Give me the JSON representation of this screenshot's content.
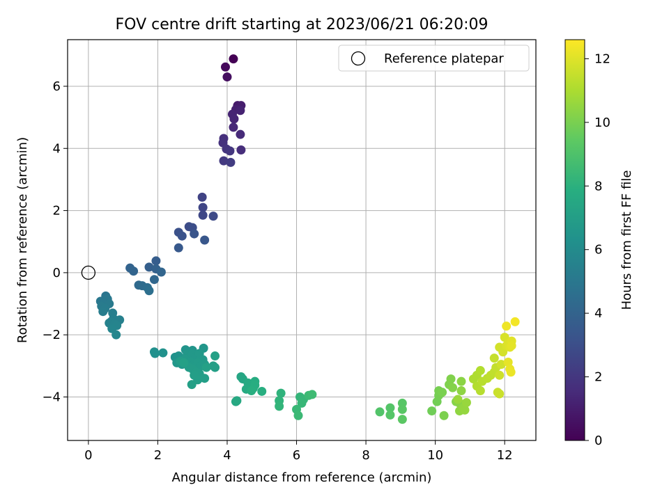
{
  "chart_data": {
    "type": "scatter",
    "title": "FOV centre drift starting at 2023/06/21 06:20:09",
    "xlabel": "Angular distance from reference (arcmin)",
    "ylabel": "Rotation from reference (arcmin)",
    "xlim": [
      -0.6,
      12.9
    ],
    "ylim": [
      -5.4,
      7.5
    ],
    "xticks": [
      0,
      2,
      4,
      6,
      8,
      10,
      12
    ],
    "yticks": [
      -4,
      -2,
      0,
      2,
      4,
      6
    ],
    "xtick_labels": [
      "0",
      "2",
      "4",
      "6",
      "8",
      "10",
      "12"
    ],
    "ytick_labels": [
      "−4",
      "−2",
      "0",
      "2",
      "4",
      "6"
    ],
    "grid": true,
    "legend": {
      "position": "top-right",
      "entries": [
        "Reference platepar"
      ]
    },
    "reference_point": {
      "x": 0,
      "y": 0
    },
    "colorbar": {
      "label": "Hours from first FF file",
      "colormap": "viridis",
      "range": [
        0,
        12.6
      ],
      "ticks": [
        0,
        2,
        4,
        6,
        8,
        10,
        12
      ],
      "tick_labels": [
        "0",
        "2",
        "4",
        "6",
        "8",
        "10",
        "12"
      ]
    },
    "points": [
      [
        4.18,
        6.88,
        0.0
      ],
      [
        3.95,
        6.62,
        0.3
      ],
      [
        4.0,
        6.3,
        0.5
      ],
      [
        4.3,
        5.38,
        0.9
      ],
      [
        4.4,
        5.38,
        1.0
      ],
      [
        4.25,
        5.25,
        1.1
      ],
      [
        4.38,
        5.22,
        1.2
      ],
      [
        4.15,
        5.1,
        1.25
      ],
      [
        4.2,
        4.95,
        1.3
      ],
      [
        4.18,
        4.68,
        1.4
      ],
      [
        4.38,
        4.45,
        1.5
      ],
      [
        4.4,
        3.95,
        1.6
      ],
      [
        3.9,
        4.32,
        1.7
      ],
      [
        3.88,
        4.18,
        1.8
      ],
      [
        3.98,
        3.98,
        1.9
      ],
      [
        4.08,
        3.92,
        2.0
      ],
      [
        3.9,
        3.6,
        2.1
      ],
      [
        4.1,
        3.55,
        2.2
      ],
      [
        3.28,
        2.43,
        2.5
      ],
      [
        3.3,
        2.1,
        2.6
      ],
      [
        3.3,
        1.85,
        2.7
      ],
      [
        3.6,
        1.82,
        2.8
      ],
      [
        2.9,
        1.48,
        2.9
      ],
      [
        3.0,
        1.45,
        3.0
      ],
      [
        2.6,
        1.3,
        3.1
      ],
      [
        2.7,
        1.18,
        3.2
      ],
      [
        3.05,
        1.25,
        3.3
      ],
      [
        3.35,
        1.05,
        3.4
      ],
      [
        2.6,
        0.8,
        3.5
      ],
      [
        1.95,
        0.38,
        3.7
      ],
      [
        1.75,
        0.18,
        3.8
      ],
      [
        1.95,
        0.12,
        3.9
      ],
      [
        1.2,
        0.15,
        4.0
      ],
      [
        1.3,
        0.05,
        4.05
      ],
      [
        2.1,
        0.02,
        4.1
      ],
      [
        1.9,
        -0.22,
        4.2
      ],
      [
        1.45,
        -0.4,
        4.3
      ],
      [
        1.55,
        -0.42,
        4.4
      ],
      [
        1.7,
        -0.48,
        4.5
      ],
      [
        1.75,
        -0.58,
        4.6
      ],
      [
        0.5,
        -0.75,
        4.9
      ],
      [
        0.35,
        -0.92,
        5.0
      ],
      [
        0.55,
        -0.85,
        5.05
      ],
      [
        0.45,
        -0.98,
        5.1
      ],
      [
        0.6,
        -1.0,
        5.15
      ],
      [
        0.38,
        -1.08,
        5.2
      ],
      [
        0.48,
        -1.15,
        5.25
      ],
      [
        0.42,
        -1.25,
        5.3
      ],
      [
        0.7,
        -1.3,
        5.35
      ],
      [
        0.72,
        -1.48,
        5.4
      ],
      [
        0.9,
        -1.52,
        5.45
      ],
      [
        0.65,
        -1.58,
        5.5
      ],
      [
        0.6,
        -1.62,
        5.55
      ],
      [
        0.75,
        -1.65,
        5.6
      ],
      [
        0.82,
        -1.7,
        5.65
      ],
      [
        0.68,
        -1.8,
        5.7
      ],
      [
        0.8,
        -2.0,
        5.75
      ],
      [
        1.9,
        -2.55,
        6.2
      ],
      [
        1.92,
        -2.6,
        6.25
      ],
      [
        2.15,
        -2.58,
        6.3
      ],
      [
        2.5,
        -2.72,
        6.35
      ],
      [
        2.6,
        -2.68,
        6.4
      ],
      [
        2.8,
        -2.48,
        6.45
      ],
      [
        3.0,
        -2.5,
        6.5
      ],
      [
        3.32,
        -2.43,
        6.55
      ],
      [
        2.55,
        -2.9,
        6.6
      ],
      [
        2.7,
        -2.95,
        6.62
      ],
      [
        2.85,
        -2.62,
        6.64
      ],
      [
        2.9,
        -2.75,
        6.66
      ],
      [
        3.0,
        -2.62,
        6.68
      ],
      [
        3.1,
        -2.7,
        6.7
      ],
      [
        3.2,
        -2.6,
        6.72
      ],
      [
        3.3,
        -2.8,
        6.74
      ],
      [
        2.78,
        -2.78,
        6.76
      ],
      [
        2.95,
        -2.88,
        6.78
      ],
      [
        3.05,
        -2.95,
        6.8
      ],
      [
        3.15,
        -2.9,
        6.82
      ],
      [
        3.25,
        -3.0,
        6.84
      ],
      [
        3.35,
        -2.95,
        6.86
      ],
      [
        2.65,
        -2.85,
        6.88
      ],
      [
        2.9,
        -3.05,
        6.9
      ],
      [
        3.0,
        -3.1,
        6.92
      ],
      [
        3.1,
        -3.2,
        6.94
      ],
      [
        3.2,
        -3.25,
        6.96
      ],
      [
        3.05,
        -3.3,
        6.98
      ],
      [
        3.15,
        -3.45,
        7.0
      ],
      [
        3.35,
        -3.4,
        7.02
      ],
      [
        2.98,
        -3.6,
        7.04
      ],
      [
        3.6,
        -3.0,
        7.06
      ],
      [
        3.65,
        -3.05,
        7.08
      ],
      [
        3.65,
        -2.68,
        7.1
      ],
      [
        2.75,
        -2.9,
        7.12
      ],
      [
        3.4,
        -3.05,
        7.14
      ],
      [
        4.4,
        -3.35,
        7.4
      ],
      [
        4.45,
        -3.42,
        7.45
      ],
      [
        4.25,
        -4.15,
        7.5
      ],
      [
        4.28,
        -4.12,
        7.55
      ],
      [
        4.6,
        -3.55,
        7.6
      ],
      [
        4.55,
        -3.75,
        7.65
      ],
      [
        4.75,
        -3.72,
        7.7
      ],
      [
        4.8,
        -3.5,
        7.75
      ],
      [
        4.8,
        -3.62,
        7.8
      ],
      [
        5.0,
        -3.82,
        7.85
      ],
      [
        4.7,
        -3.8,
        7.9
      ],
      [
        5.55,
        -3.88,
        8.1
      ],
      [
        5.5,
        -4.12,
        8.15
      ],
      [
        5.5,
        -4.3,
        8.2
      ],
      [
        6.1,
        -4.0,
        8.25
      ],
      [
        6.2,
        -4.08,
        8.3
      ],
      [
        6.15,
        -4.2,
        8.35
      ],
      [
        6.0,
        -4.4,
        8.4
      ],
      [
        6.05,
        -4.6,
        8.45
      ],
      [
        6.35,
        -3.95,
        8.5
      ],
      [
        6.45,
        -3.92,
        8.55
      ],
      [
        8.4,
        -4.48,
        9.1
      ],
      [
        8.7,
        -4.35,
        9.15
      ],
      [
        8.7,
        -4.58,
        9.2
      ],
      [
        9.05,
        -4.2,
        9.25
      ],
      [
        9.05,
        -4.4,
        9.3
      ],
      [
        9.05,
        -4.72,
        9.35
      ],
      [
        9.9,
        -4.45,
        9.8
      ],
      [
        10.05,
        -4.15,
        9.85
      ],
      [
        10.1,
        -3.95,
        9.9
      ],
      [
        10.1,
        -3.8,
        9.95
      ],
      [
        10.2,
        -3.85,
        10.0
      ],
      [
        10.25,
        -4.6,
        10.05
      ],
      [
        10.4,
        -3.6,
        10.1
      ],
      [
        10.45,
        -3.42,
        10.15
      ],
      [
        10.5,
        -3.7,
        10.2
      ],
      [
        10.6,
        -4.15,
        10.25
      ],
      [
        10.7,
        -4.2,
        10.3
      ],
      [
        10.75,
        -3.5,
        10.35
      ],
      [
        10.75,
        -3.8,
        10.4
      ],
      [
        10.7,
        -4.45,
        10.45
      ],
      [
        10.8,
        -4.35,
        10.5
      ],
      [
        10.85,
        -4.42,
        10.55
      ],
      [
        10.9,
        -4.18,
        10.6
      ],
      [
        10.65,
        -4.08,
        10.65
      ],
      [
        11.1,
        -3.42,
        11.0
      ],
      [
        11.2,
        -3.3,
        11.05
      ],
      [
        11.3,
        -3.15,
        11.1
      ],
      [
        11.2,
        -3.65,
        11.15
      ],
      [
        11.3,
        -3.8,
        11.2
      ],
      [
        11.35,
        -3.5,
        11.25
      ],
      [
        11.5,
        -3.4,
        11.3
      ],
      [
        11.6,
        -3.3,
        11.35
      ],
      [
        11.7,
        -3.2,
        11.4
      ],
      [
        11.75,
        -3.05,
        11.45
      ],
      [
        11.7,
        -2.75,
        11.5
      ],
      [
        11.8,
        -3.85,
        11.55
      ],
      [
        11.85,
        -3.9,
        11.6
      ],
      [
        11.85,
        -3.3,
        11.65
      ],
      [
        11.9,
        -2.95,
        11.7
      ],
      [
        11.85,
        -2.4,
        11.75
      ],
      [
        11.95,
        -2.55,
        11.8
      ],
      [
        12.0,
        -2.08,
        11.85
      ],
      [
        12.05,
        -2.35,
        11.9
      ],
      [
        12.1,
        -2.28,
        11.95
      ],
      [
        12.15,
        -2.4,
        12.0
      ],
      [
        12.2,
        -2.2,
        12.05
      ],
      [
        12.2,
        -2.35,
        12.1
      ],
      [
        12.1,
        -2.88,
        12.15
      ],
      [
        12.15,
        -3.1,
        12.2
      ],
      [
        12.18,
        -3.2,
        12.25
      ],
      [
        12.05,
        -1.72,
        12.3
      ],
      [
        12.3,
        -1.58,
        12.4
      ]
    ]
  }
}
